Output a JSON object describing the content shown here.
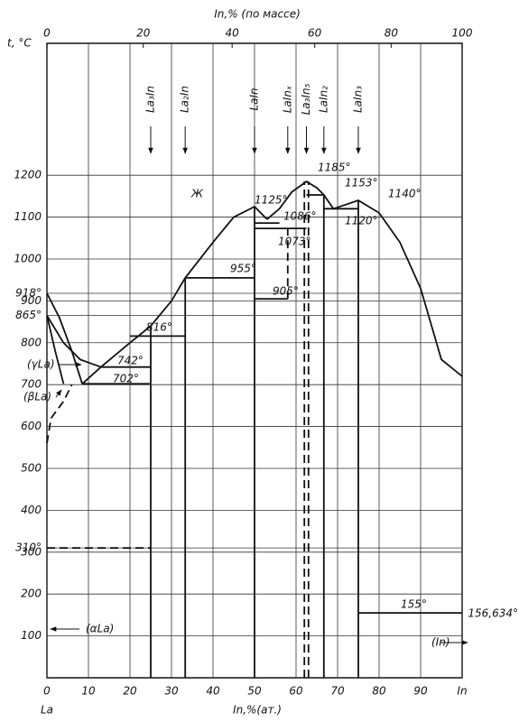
{
  "chart_data": {
    "type": "phase-diagram",
    "title": "In,% (по массе)",
    "x_label": "In,%(ат.)",
    "y_label": "t, °C",
    "left_component": "La",
    "xlim": [
      0,
      100
    ],
    "ylim": [
      0,
      1515
    ],
    "xticks": [
      0,
      10,
      20,
      30,
      40,
      50,
      60,
      70,
      80,
      90,
      {
        "value": 100,
        "label": "In"
      }
    ],
    "x2ticks": [
      {
        "value": 0,
        "label": "0"
      },
      {
        "value": 23.2,
        "label": "20"
      },
      {
        "value": 44.6,
        "label": "40"
      },
      {
        "value": 64.5,
        "label": "60"
      },
      {
        "value": 82.9,
        "label": "80"
      },
      {
        "value": 100,
        "label": "100"
      }
    ],
    "yticks": [
      100,
      200,
      300,
      {
        "value": 310,
        "label": "310°"
      },
      400,
      500,
      600,
      700,
      800,
      {
        "value": 865,
        "label": "865°"
      },
      900,
      {
        "value": 918,
        "label": "918°"
      },
      1000,
      1100,
      1200
    ],
    "grid": true,
    "color": "#111111",
    "compounds": [
      {
        "label": "La₃In",
        "x": 25
      },
      {
        "label": "La₂In",
        "x": 33.3
      },
      {
        "label": "LaIn",
        "x": 50
      },
      {
        "label": "LaInₓ",
        "x": 58
      },
      {
        "label": "La₃In₅",
        "x": 62.5
      },
      {
        "label": "LaIn₂",
        "x": 66.7
      },
      {
        "label": "LaIn₃",
        "x": 75
      }
    ],
    "curves": [
      {
        "x": [
          0,
          3,
          6,
          8.5
        ],
        "y": [
          918,
          860,
          780,
          702
        ],
        "dashed": false
      },
      {
        "x": [
          8.5,
          13,
          20,
          25,
          30,
          33.3,
          40,
          45,
          50,
          53
        ],
        "y": [
          702,
          742,
          800,
          840,
          900,
          955,
          1040,
          1100,
          1125,
          1095
        ],
        "dashed": false
      },
      {
        "x": [
          53,
          56,
          59,
          62.5,
          65,
          66.7,
          69,
          72,
          75,
          80,
          85,
          90,
          95,
          100
        ],
        "y": [
          1095,
          1120,
          1160,
          1185,
          1170,
          1153,
          1120,
          1130,
          1140,
          1110,
          1040,
          930,
          760,
          720
        ],
        "dashed": false
      },
      {
        "x": [
          0,
          4,
          8,
          13
        ],
        "y": [
          865,
          800,
          760,
          742
        ],
        "dashed": false
      },
      {
        "x": [
          0,
          2,
          4
        ],
        "y": [
          865,
          780,
          702
        ],
        "dashed": false
      },
      {
        "x": [
          0,
          1,
          4,
          6
        ],
        "y": [
          560,
          620,
          660,
          700
        ],
        "dashed": true
      },
      {
        "x": [
          8.5,
          25
        ],
        "y": [
          702,
          702
        ],
        "dashed": false
      },
      {
        "x": [
          13,
          25
        ],
        "y": [
          742,
          742
        ],
        "dashed": false
      },
      {
        "x": [
          20,
          33.3
        ],
        "y": [
          816,
          816
        ],
        "dashed": false
      },
      {
        "x": [
          33.3,
          50
        ],
        "y": [
          955,
          955
        ],
        "dashed": false
      },
      {
        "x": [
          50,
          58
        ],
        "y": [
          905,
          905
        ],
        "dashed": false
      },
      {
        "x": [
          50,
          62.5
        ],
        "y": [
          1073,
          1073
        ],
        "dashed": false
      },
      {
        "x": [
          50,
          56
        ],
        "y": [
          1086,
          1086
        ],
        "dashed": false
      },
      {
        "x": [
          62.5,
          66.7
        ],
        "y": [
          1153,
          1153
        ],
        "dashed": false
      },
      {
        "x": [
          66.7,
          75
        ],
        "y": [
          1120,
          1120
        ],
        "dashed": false
      },
      {
        "x": [
          75,
          100
        ],
        "y": [
          155,
          155
        ],
        "dashed": false
      },
      {
        "x": [
          0,
          25
        ],
        "y": [
          310,
          310
        ],
        "dashed": true
      },
      {
        "x": [
          25,
          25
        ],
        "y": [
          0,
          840
        ],
        "dashed": false
      },
      {
        "x": [
          33.3,
          33.3
        ],
        "y": [
          0,
          955
        ],
        "dashed": false
      },
      {
        "x": [
          50,
          50
        ],
        "y": [
          0,
          1125
        ],
        "dashed": false
      },
      {
        "x": [
          58,
          58
        ],
        "y": [
          905,
          1073
        ],
        "dashed": true
      },
      {
        "x": [
          62,
          62
        ],
        "y": [
          0,
          1185
        ],
        "dashed": true
      },
      {
        "x": [
          63,
          63
        ],
        "y": [
          0,
          1185
        ],
        "dashed": true
      },
      {
        "x": [
          66.7,
          66.7
        ],
        "y": [
          0,
          1153
        ],
        "dashed": false
      },
      {
        "x": [
          75,
          75
        ],
        "y": [
          0,
          1140
        ],
        "dashed": false
      }
    ],
    "annotations": [
      "1185°",
      "1153°",
      "1140°",
      "1125°",
      "1086°",
      "1073°",
      "1120°",
      "955°",
      "905°",
      "816°",
      "742°",
      "702°",
      "155°",
      "156,634°",
      "Ж",
      "(γLa)",
      "(βLa)",
      "(αLa)",
      "(In)"
    ]
  }
}
